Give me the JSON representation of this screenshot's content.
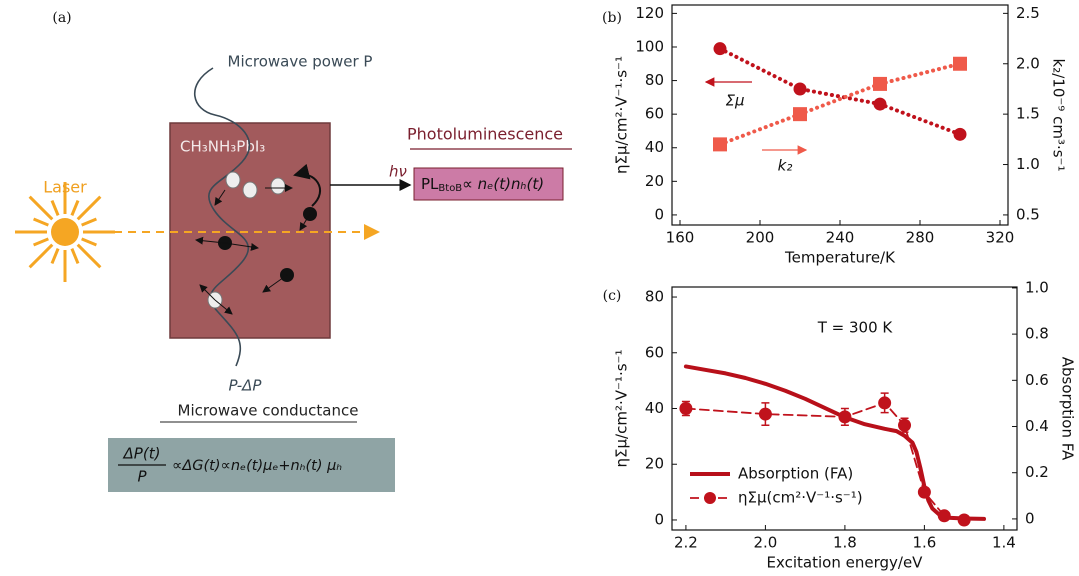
{
  "panel_a": {
    "label": "(a)",
    "microwave_in": "Microwave power P",
    "laser": "Laser",
    "material": "CH₃NH₃PbI₃",
    "photon": "hν",
    "photoluminescence": "Photoluminescence",
    "pl_formula": [
      "PL",
      "BtoB",
      "∝ nₑ(t)nₕ(t)"
    ],
    "microwave_out": "P-ΔP",
    "microwave_conductance": "Microwave conductance",
    "conductance_formula": {
      "numerator": "ΔP(t)",
      "denominator": "P",
      "rhs": "∝ΔG(t)∝nₑ(t)μₑ+nₕ(t) μₕ"
    }
  },
  "chart_data": [
    {
      "type": "line",
      "panel": "(b)",
      "xlabel": "Temperature/K",
      "ylabel": "ηΣμ/cm²·V⁻¹·s⁻¹",
      "y2label": "k₂/10⁻⁹ cm³·s⁻¹",
      "xlim": [
        156,
        324
      ],
      "xticks": [
        160,
        200,
        240,
        280,
        320
      ],
      "ylim": [
        -6,
        125
      ],
      "yticks": [
        0,
        20,
        40,
        60,
        80,
        100,
        120
      ],
      "y2lim": [
        0.4,
        2.583
      ],
      "y2ticks": [
        0.5,
        {
          "value": 1,
          "label": "1.0"
        },
        1.5,
        {
          "value": 2,
          "label": "2.0"
        },
        2.5
      ],
      "annotations": [
        "Σμ",
        "k₂"
      ],
      "series": [
        {
          "color": "#c0121c",
          "marker": "circle",
          "line_style": "dotted",
          "x": [
            180,
            220,
            260,
            300
          ],
          "values": [
            99,
            75,
            66,
            48
          ]
        },
        {
          "color": "#ef5a4a",
          "marker": "square",
          "line_style": "dotted",
          "axis": "y2",
          "x": [
            180,
            220,
            260,
            300
          ],
          "values": [
            1.2,
            1.5,
            1.8,
            2.0
          ]
        }
      ]
    },
    {
      "type": "line",
      "panel": "(c)",
      "xlabel": "Excitation energy/eV",
      "ylabel": "ηΣμ/cm²·V⁻¹·s⁻¹",
      "y2label": "Absorption FA",
      "annotations": [
        "T = 300 K"
      ],
      "legend": "lower left",
      "xlim": [
        2.235,
        1.367
      ],
      "xticks": [
        2.2,
        {
          "value": 2,
          "label": "2.0"
        },
        1.8,
        1.6,
        1.4
      ],
      "ylim": [
        -3.6,
        83.6
      ],
      "yticks": [
        0,
        20,
        40,
        60,
        80
      ],
      "y2lim": [
        -0.048,
        1.004
      ],
      "y2ticks": [
        0,
        0.2,
        0.4,
        0.6,
        0.8,
        {
          "value": 1,
          "label": "1.0"
        }
      ],
      "series": [
        {
          "name": "Absorption (FA)",
          "color": "#b8101a",
          "marker": "none",
          "line_style": "solid",
          "axis": "y2",
          "x": [
            2.2,
            2.15,
            2.1,
            2.05,
            2.0,
            1.95,
            1.9,
            1.85,
            1.8,
            1.75,
            1.7,
            1.67,
            1.65,
            1.63,
            1.62,
            1.61,
            1.6,
            1.59,
            1.58,
            1.56,
            1.54,
            1.5,
            1.45
          ],
          "values": [
            0.66,
            0.645,
            0.63,
            0.61,
            0.585,
            0.555,
            0.52,
            0.48,
            0.44,
            0.41,
            0.39,
            0.38,
            0.36,
            0.33,
            0.29,
            0.22,
            0.14,
            0.08,
            0.045,
            0.015,
            0.005,
            0.002,
            0
          ]
        },
        {
          "name": "ηΣμ(cm²·V⁻¹·s⁻¹)",
          "color": "#c0121c",
          "marker": "circle",
          "line_style": "dashed",
          "x": [
            2.2,
            2.0,
            1.8,
            1.7,
            1.65,
            1.6,
            1.55,
            1.5
          ],
          "values": [
            40,
            38,
            37,
            42,
            34,
            10,
            1.5,
            0
          ],
          "errors": [
            2.5,
            4,
            3,
            3.5,
            2.5,
            1.5,
            1,
            0.5
          ]
        }
      ]
    }
  ]
}
